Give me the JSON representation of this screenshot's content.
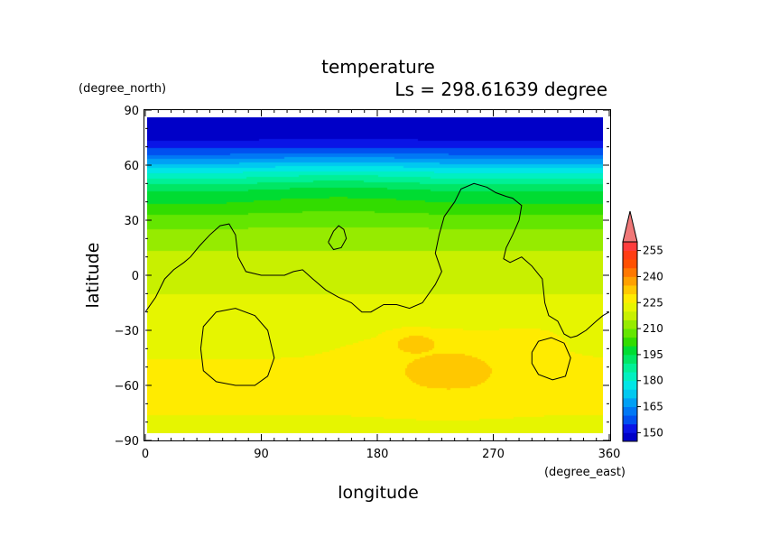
{
  "chart_data": {
    "type": "heatmap",
    "title": "temperature",
    "subtitle": "Ls = 298.61639 degree",
    "xlabel": "longitude",
    "ylabel": "latitude",
    "xunit": "(degree_east)",
    "yunit": "(degree_north)",
    "xlim": [
      0,
      360
    ],
    "ylim": [
      -90,
      90
    ],
    "xticks": [
      "0",
      "90",
      "180",
      "270",
      "360"
    ],
    "yticks": [
      "90",
      "60",
      "30",
      "0",
      "−30",
      "−60",
      "−90"
    ],
    "colorbar": {
      "labels": [
        "255",
        "240",
        "225",
        "210",
        "195",
        "180",
        "165",
        "150"
      ],
      "label_values": [
        255,
        240,
        225,
        210,
        195,
        180,
        165,
        150
      ],
      "levels": [
        145,
        150,
        155,
        160,
        165,
        170,
        175,
        180,
        185,
        190,
        195,
        200,
        205,
        210,
        215,
        220,
        225,
        230,
        235,
        240,
        245,
        250,
        255,
        260
      ],
      "colors": [
        "#0000c8",
        "#0a14e6",
        "#0050f0",
        "#0078f5",
        "#00a0f5",
        "#00c8f0",
        "#00e6e6",
        "#00f0c0",
        "#00f096",
        "#00e664",
        "#00dc32",
        "#32dc00",
        "#64e600",
        "#96eb00",
        "#c8f000",
        "#e6f500",
        "#ffeb00",
        "#ffc800",
        "#ffa000",
        "#ff7800",
        "#ff5000",
        "#ff3c14",
        "#ff3c3c",
        "#f07878"
      ]
    },
    "zonal_profile": {
      "lat": [
        -85,
        -75,
        -60,
        -45,
        -30,
        -20,
        -10,
        0,
        10,
        20,
        30,
        40,
        45,
        50,
        55,
        60,
        65,
        70,
        75,
        85
      ],
      "temp": [
        224,
        225,
        226,
        225,
        224,
        222,
        220,
        218,
        216,
        213,
        207,
        199,
        195,
        188,
        180,
        170,
        160,
        152,
        148,
        145
      ]
    },
    "warm_spots": [
      {
        "lon": 235,
        "lat": -50,
        "peak": 232,
        "spread_lon": 55,
        "spread_lat": 16
      },
      {
        "lon": 210,
        "lat": -37,
        "peak": 233,
        "spread_lon": 22,
        "spread_lat": 7
      },
      {
        "lon": 290,
        "lat": -35,
        "peak": 227,
        "spread_lon": 30,
        "spread_lat": 8
      }
    ],
    "contours": [
      [
        [
          0,
          -20
        ],
        [
          8,
          -12
        ],
        [
          15,
          -2
        ],
        [
          22,
          3
        ],
        [
          30,
          7
        ],
        [
          35,
          10
        ],
        [
          42,
          16
        ],
        [
          50,
          22
        ],
        [
          58,
          27
        ],
        [
          65,
          28
        ],
        [
          70,
          22
        ],
        [
          72,
          10
        ],
        [
          78,
          2
        ],
        [
          90,
          0
        ],
        [
          100,
          0
        ],
        [
          108,
          0
        ],
        [
          115,
          2
        ],
        [
          122,
          3
        ],
        [
          130,
          -2
        ],
        [
          140,
          -8
        ],
        [
          150,
          -12
        ],
        [
          160,
          -15
        ],
        [
          168,
          -20
        ],
        [
          175,
          -20
        ],
        [
          185,
          -16
        ],
        [
          195,
          -16
        ],
        [
          205,
          -18
        ],
        [
          215,
          -15
        ],
        [
          225,
          -5
        ],
        [
          230,
          2
        ],
        [
          225,
          12
        ],
        [
          228,
          22
        ],
        [
          232,
          32
        ],
        [
          240,
          40
        ],
        [
          245,
          47
        ],
        [
          255,
          50
        ],
        [
          265,
          48
        ],
        [
          272,
          45
        ],
        [
          280,
          43
        ],
        [
          285,
          42
        ],
        [
          292,
          38
        ],
        [
          290,
          30
        ],
        [
          285,
          22
        ],
        [
          280,
          15
        ],
        [
          278,
          9
        ],
        [
          283,
          7
        ],
        [
          292,
          10
        ],
        [
          300,
          5
        ],
        [
          308,
          -2
        ],
        [
          310,
          -15
        ],
        [
          313,
          -22
        ],
        [
          320,
          -25
        ],
        [
          325,
          -32
        ],
        [
          330,
          -34
        ],
        [
          335,
          -33
        ],
        [
          342,
          -30
        ],
        [
          350,
          -25
        ],
        [
          355,
          -22
        ],
        [
          360,
          -20
        ]
      ],
      [
        [
          142,
          18
        ],
        [
          146,
          24
        ],
        [
          150,
          27
        ],
        [
          154,
          25
        ],
        [
          156,
          20
        ],
        [
          152,
          15
        ],
        [
          146,
          14
        ],
        [
          142,
          18
        ]
      ],
      [
        [
          43,
          -40
        ],
        [
          45,
          -28
        ],
        [
          55,
          -20
        ],
        [
          70,
          -18
        ],
        [
          85,
          -22
        ],
        [
          95,
          -30
        ],
        [
          100,
          -45
        ],
        [
          95,
          -55
        ],
        [
          85,
          -60
        ],
        [
          70,
          -60
        ],
        [
          55,
          -58
        ],
        [
          45,
          -52
        ],
        [
          43,
          -40
        ]
      ],
      [
        [
          300,
          -42
        ],
        [
          305,
          -36
        ],
        [
          315,
          -34
        ],
        [
          325,
          -37
        ],
        [
          330,
          -45
        ],
        [
          326,
          -55
        ],
        [
          316,
          -57
        ],
        [
          305,
          -54
        ],
        [
          300,
          -48
        ],
        [
          300,
          -42
        ]
      ]
    ]
  }
}
